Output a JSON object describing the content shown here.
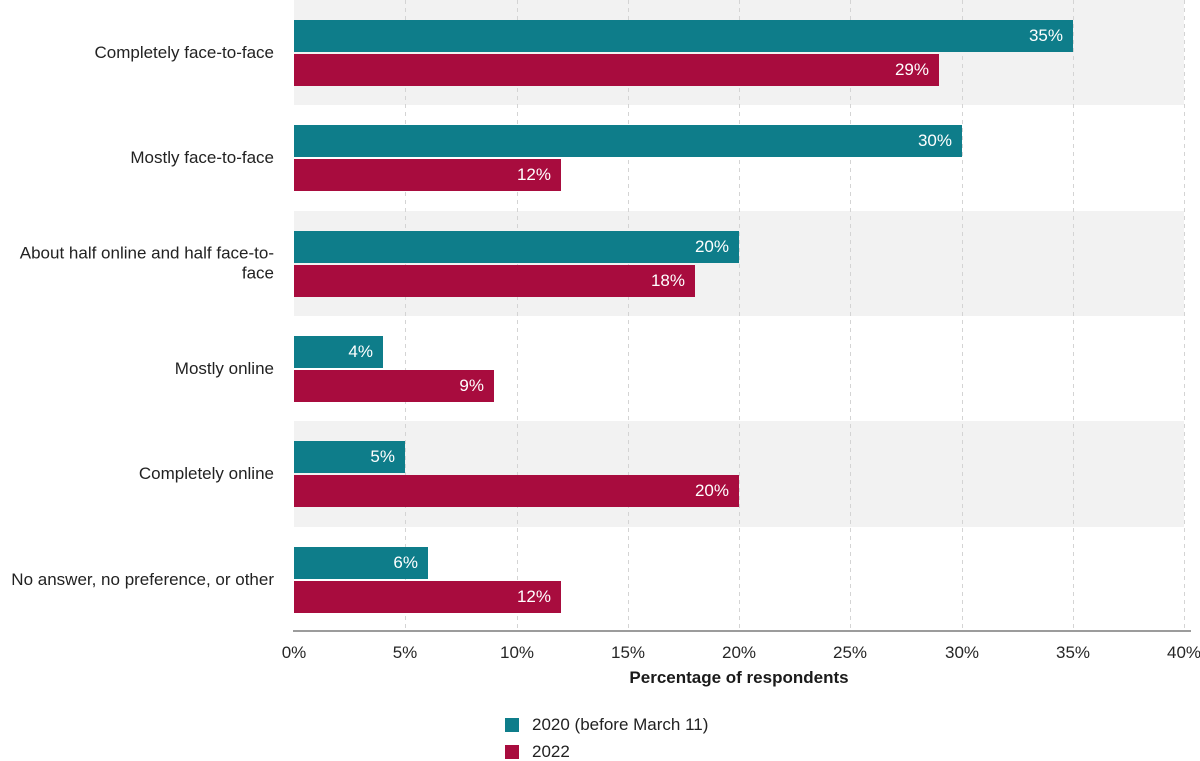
{
  "chart_data": {
    "type": "bar",
    "orientation": "horizontal",
    "title": "",
    "xlabel": "Percentage of respondents",
    "ylabel": "",
    "xlim": [
      0,
      40
    ],
    "xticks": [
      0,
      5,
      10,
      15,
      20,
      25,
      30,
      35,
      40
    ],
    "xtick_labels": [
      "0%",
      "5%",
      "10%",
      "15%",
      "20%",
      "25%",
      "30%",
      "35%",
      "40%"
    ],
    "grid": "vertical-dashed",
    "row_stripes": true,
    "legend_position": "bottom-left",
    "value_suffix": "%",
    "categories": [
      "Completely face-to-face",
      "Mostly face-to-face",
      "About half online and half face-to-face",
      "Mostly online",
      "Completely online",
      "No answer, no preference, or other"
    ],
    "series": [
      {
        "name": "2020 (before March 11)",
        "color": "#0e7d8a",
        "values": [
          35,
          30,
          20,
          4,
          5,
          6
        ]
      },
      {
        "name": "2022",
        "color": "#a80c3e",
        "values": [
          29,
          12,
          18,
          9,
          20,
          12
        ]
      }
    ],
    "value_labels": {
      "2020": [
        "35%",
        "30%",
        "20%",
        "4%",
        "5%",
        "6%"
      ],
      "2022": [
        "29%",
        "12%",
        "18%",
        "9%",
        "20%",
        "12%"
      ]
    }
  },
  "colors": {
    "series_2020": "#0e7d8a",
    "series_2022": "#a80c3e",
    "row_stripe": "#f2f2f2",
    "gridline": "#d4d4d4",
    "axis_line": "#9c9c9c",
    "text": "#222222",
    "bar_label_text": "#ffffff",
    "background": "#ffffff"
  },
  "legend": {
    "items": [
      {
        "label": "2020 (before March 11)",
        "color": "#0e7d8a"
      },
      {
        "label": "2022",
        "color": "#a80c3e"
      }
    ]
  }
}
